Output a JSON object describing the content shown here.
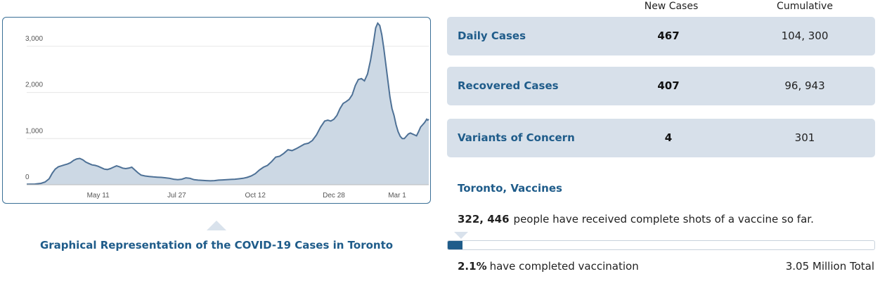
{
  "chart_data": {
    "type": "area",
    "title": "",
    "xlabel": "",
    "ylabel": "",
    "ylim": [
      0,
      3500
    ],
    "y_ticks": [
      "0",
      "1,000",
      "2,000",
      "3,000"
    ],
    "x_ticks": [
      "May 11",
      "Jul 27",
      "Oct 12",
      "Dec 28",
      "Mar 1"
    ],
    "x_tick_positions": [
      70,
      147,
      224,
      301,
      363
    ],
    "grid": "horizontal",
    "fill_color": "#ccd8e4",
    "line_color": "#4e7196",
    "series": [
      {
        "values": [
          [
            0,
            10
          ],
          [
            8,
            15
          ],
          [
            14,
            30
          ],
          [
            18,
            60
          ],
          [
            22,
            130
          ],
          [
            25,
            250
          ],
          [
            28,
            340
          ],
          [
            31,
            390
          ],
          [
            34,
            410
          ],
          [
            37,
            430
          ],
          [
            40,
            450
          ],
          [
            43,
            480
          ],
          [
            46,
            530
          ],
          [
            49,
            560
          ],
          [
            52,
            570
          ],
          [
            55,
            540
          ],
          [
            58,
            490
          ],
          [
            61,
            460
          ],
          [
            64,
            430
          ],
          [
            67,
            420
          ],
          [
            70,
            400
          ],
          [
            73,
            370
          ],
          [
            76,
            340
          ],
          [
            79,
            330
          ],
          [
            82,
            350
          ],
          [
            85,
            380
          ],
          [
            88,
            410
          ],
          [
            91,
            390
          ],
          [
            94,
            360
          ],
          [
            97,
            350
          ],
          [
            100,
            360
          ],
          [
            103,
            380
          ],
          [
            106,
            320
          ],
          [
            109,
            260
          ],
          [
            112,
            210
          ],
          [
            116,
            190
          ],
          [
            120,
            180
          ],
          [
            124,
            170
          ],
          [
            128,
            165
          ],
          [
            132,
            160
          ],
          [
            136,
            150
          ],
          [
            140,
            140
          ],
          [
            144,
            120
          ],
          [
            148,
            110
          ],
          [
            152,
            120
          ],
          [
            156,
            150
          ],
          [
            160,
            140
          ],
          [
            164,
            110
          ],
          [
            168,
            100
          ],
          [
            172,
            95
          ],
          [
            176,
            90
          ],
          [
            180,
            85
          ],
          [
            184,
            90
          ],
          [
            188,
            100
          ],
          [
            192,
            105
          ],
          [
            196,
            110
          ],
          [
            200,
            115
          ],
          [
            204,
            120
          ],
          [
            208,
            130
          ],
          [
            212,
            140
          ],
          [
            216,
            160
          ],
          [
            220,
            190
          ],
          [
            224,
            240
          ],
          [
            228,
            320
          ],
          [
            232,
            380
          ],
          [
            236,
            420
          ],
          [
            240,
            500
          ],
          [
            244,
            600
          ],
          [
            248,
            620
          ],
          [
            252,
            680
          ],
          [
            256,
            760
          ],
          [
            260,
            740
          ],
          [
            264,
            780
          ],
          [
            268,
            830
          ],
          [
            272,
            880
          ],
          [
            276,
            900
          ],
          [
            280,
            960
          ],
          [
            284,
            1080
          ],
          [
            288,
            1250
          ],
          [
            292,
            1380
          ],
          [
            295,
            1400
          ],
          [
            298,
            1380
          ],
          [
            301,
            1420
          ],
          [
            304,
            1500
          ],
          [
            307,
            1650
          ],
          [
            310,
            1760
          ],
          [
            313,
            1800
          ],
          [
            316,
            1850
          ],
          [
            319,
            1950
          ],
          [
            322,
            2150
          ],
          [
            325,
            2280
          ],
          [
            328,
            2300
          ],
          [
            331,
            2250
          ],
          [
            334,
            2400
          ],
          [
            337,
            2700
          ],
          [
            340,
            3100
          ],
          [
            342,
            3400
          ],
          [
            344,
            3500
          ],
          [
            346,
            3450
          ],
          [
            348,
            3250
          ],
          [
            350,
            2950
          ],
          [
            352,
            2600
          ],
          [
            354,
            2250
          ],
          [
            356,
            1900
          ],
          [
            358,
            1650
          ],
          [
            360,
            1500
          ],
          [
            362,
            1300
          ],
          [
            364,
            1150
          ],
          [
            366,
            1050
          ],
          [
            368,
            1000
          ],
          [
            370,
            1000
          ],
          [
            372,
            1050
          ],
          [
            374,
            1100
          ],
          [
            376,
            1120
          ],
          [
            378,
            1100
          ],
          [
            380,
            1080
          ],
          [
            382,
            1060
          ],
          [
            384,
            1150
          ],
          [
            386,
            1250
          ],
          [
            388,
            1300
          ],
          [
            390,
            1350
          ],
          [
            392,
            1420
          ],
          [
            393,
            1400
          ],
          [
            394,
            1420
          ]
        ]
      }
    ]
  },
  "caption": "Graphical Representation of the COVID-19 Cases in Toronto",
  "table": {
    "headers": {
      "new": "New Cases",
      "cumulative": "Cumulative"
    },
    "rows": [
      {
        "label": "Daily Cases",
        "new": "467",
        "cumulative": "104, 300"
      },
      {
        "label": "Recovered Cases",
        "new": "407",
        "cumulative": "96, 943"
      },
      {
        "label": "Variants of Concern",
        "new": "4",
        "cumulative": "301"
      }
    ]
  },
  "vaccines": {
    "title": "Toronto, Vaccines",
    "count": "322, 446",
    "sentence": "people have received complete shots of a vaccine so far.",
    "percent": "2.1%",
    "percent_text": "have completed vaccination",
    "total": "3.05 Million Total",
    "progress_fraction": 0.021,
    "bar_color": "#1f5c8a"
  }
}
